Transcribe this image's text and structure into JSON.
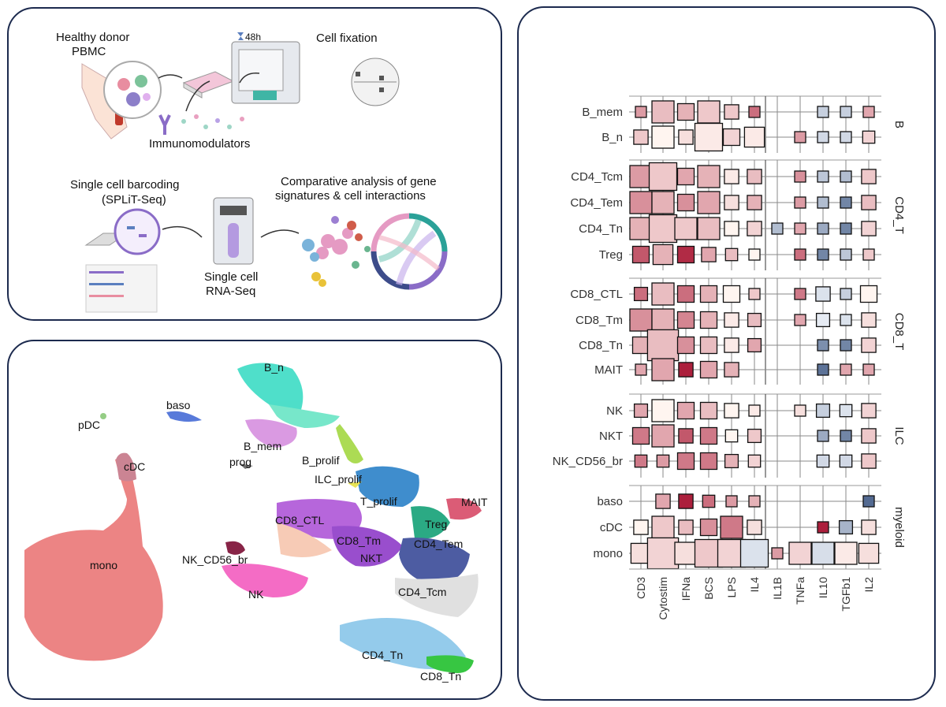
{
  "schematic": {
    "donor_label": "Healthy donor",
    "donor_sub": "PBMC",
    "timer": "48h",
    "fixation": "Cell fixation",
    "immuno": "Immunomodulators",
    "barcoding": "Single cell barcoding",
    "barcoding_sub": "(SPLiT-Seq)",
    "rnaseq": "Single cell",
    "rnaseq_sub": "RNA-Seq",
    "comparative": "Comparative analysis of  gene",
    "comparative_sub": "signatures & cell interactions"
  },
  "umap_labels": [
    "B_n",
    "baso",
    "pDC",
    "B_mem",
    "prog",
    "cDC",
    "B_prolif",
    "ILC_prolif",
    "T_prolif",
    "MAIT",
    "CD8_CTL",
    "Treg",
    "CD8_Tm",
    "CD4_Tem",
    "NK_CD56_br",
    "NKT",
    "mono",
    "NK",
    "CD4_Tcm",
    "CD4_Tn",
    "CD8_Tn"
  ],
  "chart_data": {
    "type": "heatmap",
    "columns": [
      "CD3",
      "Cytostim",
      "IFNa",
      "BCS",
      "LPS",
      "IL4",
      "IL1B",
      "TNFa",
      "IL10",
      "TGFb1",
      "IL2"
    ],
    "groups": [
      {
        "name": "B",
        "rows": [
          "B_mem",
          "B_n"
        ]
      },
      {
        "name": "CD4_T",
        "rows": [
          "CD4_Tcm",
          "CD4_Tem",
          "CD4_Tn",
          "Treg"
        ]
      },
      {
        "name": "CD8_T",
        "rows": [
          "CD8_CTL",
          "CD8_Tm",
          "CD8_Tn",
          "MAIT"
        ]
      },
      {
        "name": "ILC",
        "rows": [
          "NK",
          "NKT",
          "NK_CD56_br"
        ]
      },
      {
        "name": "myeloid",
        "rows": [
          "baso",
          "cDC",
          "mono"
        ]
      }
    ],
    "cells": {
      "B_mem": [
        [
          1,
          0.4
        ],
        [
          2,
          0.25
        ],
        [
          1.5,
          0.3
        ],
        [
          2,
          0.2
        ],
        [
          1.3,
          0.2
        ],
        [
          1,
          0.6
        ],
        null,
        null,
        [
          1,
          -0.2
        ],
        [
          1,
          -0.2
        ],
        [
          1,
          0.35
        ]
      ],
      "B_n": [
        [
          1.3,
          0.2
        ],
        [
          2,
          0.0
        ],
        [
          1.3,
          0.1
        ],
        [
          2.5,
          0.05
        ],
        [
          1.5,
          0.15
        ],
        [
          1.8,
          0.05
        ],
        null,
        [
          1,
          0.4
        ],
        [
          1,
          -0.15
        ],
        [
          1,
          -0.15
        ],
        [
          1.1,
          0.15
        ]
      ],
      "CD4_Tcm": [
        [
          2,
          0.4
        ],
        [
          2.5,
          0.2
        ],
        [
          1.5,
          0.35
        ],
        [
          2,
          0.3
        ],
        [
          1.3,
          0.05
        ],
        [
          1.3,
          0.25
        ],
        null,
        [
          1,
          0.45
        ],
        [
          1,
          -0.25
        ],
        [
          1,
          -0.3
        ],
        [
          1.3,
          0.2
        ]
      ],
      "CD4_Tem": [
        [
          2,
          0.45
        ],
        [
          2,
          0.3
        ],
        [
          1.5,
          0.45
        ],
        [
          2,
          0.35
        ],
        [
          1.3,
          0.1
        ],
        [
          1.3,
          0.3
        ],
        null,
        [
          1,
          0.4
        ],
        [
          1,
          -0.3
        ],
        [
          1,
          -0.6
        ],
        [
          1.3,
          0.25
        ]
      ],
      "CD4_Tn": [
        [
          2,
          0.3
        ],
        [
          2.5,
          0.2
        ],
        [
          2,
          0.2
        ],
        [
          2,
          0.25
        ],
        [
          1.3,
          0.0
        ],
        [
          1.3,
          0.15
        ],
        [
          1,
          -0.3
        ],
        [
          1,
          0.35
        ],
        [
          1,
          -0.4
        ],
        [
          1,
          -0.6
        ],
        [
          1.3,
          0.15
        ]
      ],
      "Treg": [
        [
          1.5,
          0.7
        ],
        [
          1.8,
          0.3
        ],
        [
          1.5,
          0.9
        ],
        [
          1.3,
          0.35
        ],
        [
          1.1,
          0.25
        ],
        [
          1,
          0.0
        ],
        null,
        [
          1,
          0.6
        ],
        [
          1,
          -0.6
        ],
        [
          1,
          -0.25
        ],
        [
          1,
          0.2
        ]
      ],
      "CD8_CTL": [
        [
          1.2,
          0.6
        ],
        [
          2,
          0.25
        ],
        [
          1.5,
          0.6
        ],
        [
          1.5,
          0.3
        ],
        [
          1.5,
          0.0
        ],
        [
          1,
          0.2
        ],
        null,
        [
          1,
          0.55
        ],
        [
          1.3,
          -0.1
        ],
        [
          1,
          -0.2
        ],
        [
          1.5,
          0.0
        ]
      ],
      "CD8_Tm": [
        [
          2,
          0.45
        ],
        [
          2,
          0.3
        ],
        [
          1.5,
          0.5
        ],
        [
          1.5,
          0.3
        ],
        [
          1.3,
          0.05
        ],
        [
          1.2,
          0.25
        ],
        null,
        [
          1,
          0.35
        ],
        [
          1.2,
          -0.05
        ],
        [
          1,
          -0.1
        ],
        [
          1.3,
          0.1
        ]
      ],
      "CD8_Tn": [
        [
          1.5,
          0.3
        ],
        [
          2.8,
          0.25
        ],
        [
          1.5,
          0.45
        ],
        [
          1.5,
          0.25
        ],
        [
          1.3,
          0.05
        ],
        [
          1.2,
          0.35
        ],
        null,
        null,
        [
          1,
          -0.55
        ],
        [
          1,
          -0.6
        ],
        [
          1.3,
          0.15
        ]
      ],
      "MAIT": [
        [
          1,
          0.35
        ],
        [
          2,
          0.35
        ],
        [
          1.3,
          0.95
        ],
        [
          1.5,
          0.35
        ],
        [
          1.3,
          0.3
        ],
        null,
        null,
        null,
        [
          1,
          -0.7
        ],
        [
          1,
          0.35
        ],
        [
          1,
          0.35
        ]
      ],
      "NK": [
        [
          1.2,
          0.35
        ],
        [
          2,
          0.0
        ],
        [
          1.5,
          0.35
        ],
        [
          1.5,
          0.25
        ],
        [
          1.3,
          0.0
        ],
        [
          1,
          0.05
        ],
        null,
        [
          1,
          0.1
        ],
        [
          1.2,
          -0.2
        ],
        [
          1.1,
          -0.1
        ],
        [
          1.3,
          0.15
        ]
      ],
      "NKT": [
        [
          1.5,
          0.55
        ],
        [
          2,
          0.35
        ],
        [
          1.3,
          0.7
        ],
        [
          1.5,
          0.55
        ],
        [
          1.1,
          0.0
        ],
        [
          1.2,
          0.2
        ],
        null,
        null,
        [
          1,
          -0.4
        ],
        [
          1,
          -0.6
        ],
        [
          1.3,
          0.2
        ]
      ],
      "NK_CD56_br": [
        [
          1.1,
          0.55
        ],
        [
          1.1,
          0.4
        ],
        [
          1.5,
          0.55
        ],
        [
          1.5,
          0.55
        ],
        [
          1.2,
          0.3
        ],
        [
          1.1,
          0.15
        ],
        null,
        null,
        [
          1.1,
          -0.15
        ],
        [
          1.1,
          -0.15
        ],
        [
          1.3,
          0.2
        ]
      ],
      "baso": [
        [
          0,
          0
        ],
        [
          1.3,
          0.35
        ],
        [
          1.3,
          0.95
        ],
        [
          1.1,
          0.6
        ],
        [
          1,
          0.4
        ],
        [
          1,
          0.3
        ],
        null,
        null,
        null,
        null,
        [
          1,
          -0.75
        ]
      ],
      "cDC": [
        [
          1.3,
          0.0
        ],
        [
          2,
          0.2
        ],
        [
          1.3,
          0.25
        ],
        [
          1.5,
          0.45
        ],
        [
          2,
          0.55
        ],
        [
          1.3,
          0.1
        ],
        null,
        null,
        [
          1,
          0.95
        ],
        [
          1.2,
          -0.35
        ],
        [
          1.3,
          0.1
        ]
      ],
      "mono": [
        [
          1.8,
          0.1
        ],
        [
          2.8,
          0.15
        ],
        [
          2,
          0.1
        ],
        [
          2.5,
          0.2
        ],
        [
          2.5,
          0.15
        ],
        [
          2.5,
          -0.1
        ],
        [
          1,
          0.4
        ],
        [
          2,
          0.15
        ],
        [
          2,
          -0.12
        ],
        [
          2,
          0.05
        ],
        [
          1.8,
          0.1
        ]
      ]
    }
  }
}
